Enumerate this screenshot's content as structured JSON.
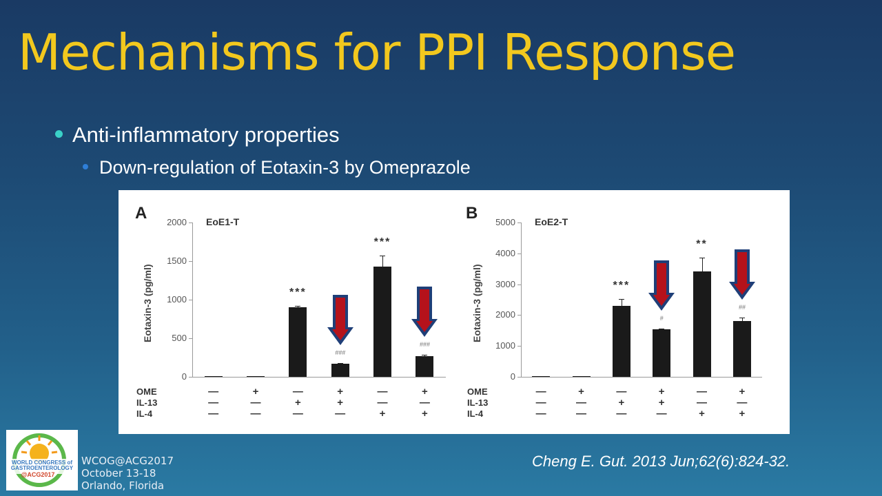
{
  "slide": {
    "title": "Mechanisms for PPI Response",
    "title_color": "#f2c81e",
    "bullets": [
      {
        "level": 1,
        "text": "Anti-inflammatory properties"
      },
      {
        "level": 2,
        "text": "Down-regulation of Eotaxin-3 by Omeprazole"
      }
    ],
    "citation": "Cheng E. Gut. 2013 Jun;62(6):824-32.",
    "footer": {
      "logo_alt": "WORLD CONGRESS of GASTROENTEROLOGY @ACG2017",
      "line1": "WCOG@ACG2017",
      "line2": "October 13-18",
      "line3": "Orlando, Florida"
    }
  },
  "chart_data": [
    {
      "type": "bar",
      "panel": "A",
      "title": "EoE1-T",
      "ylabel": "Eotaxin-3 (pg/ml)",
      "ylim": [
        0,
        2000
      ],
      "yticks": [
        "0",
        "500",
        "1000",
        "1500",
        "2000"
      ],
      "conditions": {
        "OME": [
          "-",
          "+",
          "-",
          "+",
          "-",
          "+"
        ],
        "IL-13": [
          "-",
          "-",
          "+",
          "+",
          "-",
          "-"
        ],
        "IL-4": [
          "-",
          "-",
          "-",
          "-",
          "+",
          "+"
        ]
      },
      "values": [
        5,
        0,
        905,
        170,
        1430,
        270
      ],
      "errors": [
        0,
        0,
        15,
        5,
        140,
        15
      ],
      "annotations": [
        "",
        "",
        "***",
        "###",
        "***",
        "###"
      ],
      "highlight_arrows": [
        3,
        5
      ]
    },
    {
      "type": "bar",
      "panel": "B",
      "title": "EoE2-T",
      "ylabel": "Eotaxin-3 (pg/ml)",
      "ylim": [
        0,
        5000
      ],
      "yticks": [
        "0",
        "1000",
        "2000",
        "3000",
        "4000",
        "5000"
      ],
      "conditions": {
        "OME": [
          "-",
          "+",
          "-",
          "+",
          "-",
          "+"
        ],
        "IL-13": [
          "-",
          "-",
          "+",
          "+",
          "-",
          "-"
        ],
        "IL-4": [
          "-",
          "-",
          "-",
          "-",
          "+",
          "+"
        ]
      },
      "values": [
        10,
        10,
        2300,
        1550,
        3420,
        1800
      ],
      "errors": [
        0,
        0,
        230,
        20,
        450,
        130
      ],
      "annotations": [
        "",
        "",
        "***",
        "#",
        "**",
        "##"
      ],
      "highlight_arrows": [
        3,
        5
      ]
    }
  ],
  "labels": {
    "rows": [
      "OME",
      "IL-13",
      "IL-4"
    ]
  }
}
